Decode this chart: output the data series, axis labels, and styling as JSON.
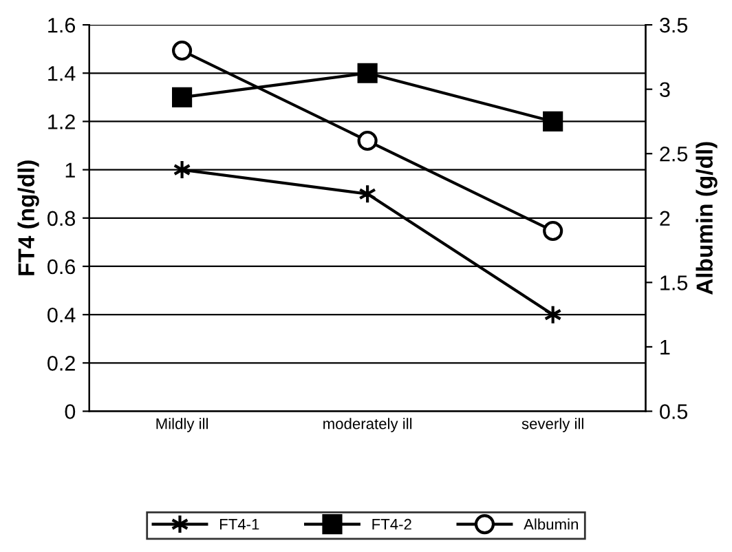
{
  "chart_data": {
    "type": "line",
    "ylabel": "FT4 (ng/dl)",
    "y2label": "Albumin (g/dl)",
    "categories": [
      "Mildly ill",
      "moderately ill",
      "severly ill"
    ],
    "series": [
      {
        "name": "FT4-1",
        "color": "#000000",
        "values": [
          1,
          0.9,
          0.4
        ],
        "marker": "cross"
      },
      {
        "name": "FT4-2",
        "color": "#000000",
        "values": [
          1.3,
          1.4,
          1.2
        ],
        "marker": "square"
      },
      {
        "name": "Albumin",
        "color": "#000000",
        "values": [
          3.3,
          2.6,
          1.9
        ],
        "marker": "circle",
        "axis": "y2"
      }
    ],
    "ylim": [
      0,
      1.6
    ],
    "yticks": [
      0,
      0.2,
      0.4,
      0.6,
      0.8,
      1,
      1.2,
      1.4,
      1.6
    ],
    "y2lim": [
      0.5,
      3.5
    ],
    "y2ticks": [
      0.5,
      1,
      1.5,
      2,
      2.5,
      3,
      3.5
    ],
    "grid": "y",
    "legend": "bottom",
    "line_style": "solid"
  }
}
